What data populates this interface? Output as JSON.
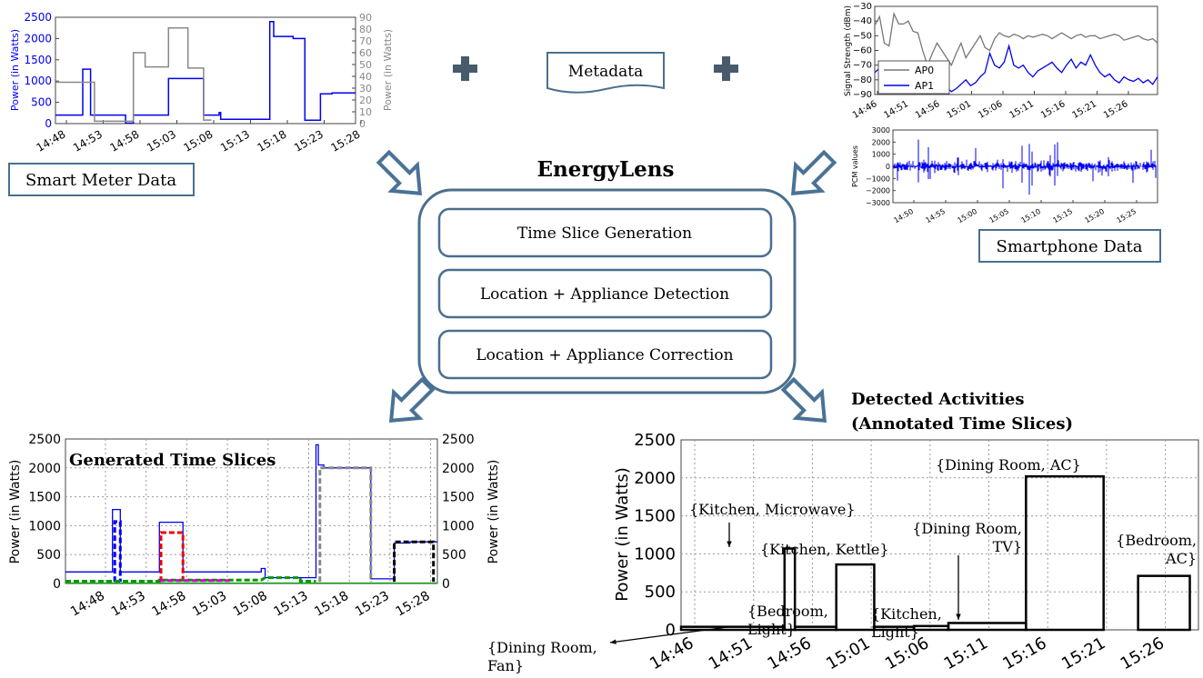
{
  "title": "EnergyLens",
  "modules": [
    "Time Slice Generation",
    "Location + Appliance Detection",
    "Location + Appliance Correction"
  ],
  "labels": {
    "smart_meter": "Smart Meter Data",
    "metadata": "Metadata",
    "smartphone": "Smartphone Data",
    "detected_line1": "Detected Activities",
    "detected_line2": "(Annotated Time Slices)"
  },
  "colors": {
    "arrow": "#4a7296",
    "box": "#4a6f8f",
    "plus": "#475b6c"
  },
  "chart_data": [
    {
      "type": "line",
      "title": "",
      "ylabel": "Power (in Watts)",
      "y2label": "Power (in Watts)",
      "ylim": [
        0,
        2500
      ],
      "y2lim": [
        0,
        90
      ],
      "yticks": [
        "0",
        "500",
        "1000",
        "1500",
        "2000",
        "2500"
      ],
      "y2ticks": [
        "0",
        "10",
        "20",
        "30",
        "40",
        "50",
        "60",
        "70",
        "80",
        "90"
      ],
      "xticks": [
        "14:48",
        "14:53",
        "14:58",
        "15:03",
        "15:08",
        "15:13",
        "15:18",
        "15:23",
        "15:28"
      ],
      "series": [
        {
          "color": "#0000ee",
          "axis": "left",
          "x": [
            14.0,
            17.5,
            17.5,
            18.5,
            18.5,
            23.0,
            23.0,
            24.0,
            24.0,
            28.5,
            28.5,
            33.0,
            33.0,
            35.0,
            35.0,
            35.2,
            35.2,
            41.5,
            41.5,
            42.0,
            42.0,
            44.5,
            44.5,
            46.0,
            46.0,
            48.0,
            48.0,
            49.5,
            49.5,
            52.5
          ],
          "y": [
            200,
            200,
            1280,
            1280,
            200,
            200,
            10,
            10,
            200,
            200,
            1060,
            1060,
            200,
            200,
            260,
            260,
            100,
            100,
            2400,
            2400,
            2050,
            2050,
            2000,
            2000,
            80,
            80,
            700,
            700,
            720,
            720
          ]
        },
        {
          "color": "#888888",
          "axis": "right",
          "x": [
            14.0,
            19.0,
            19.0,
            24.0,
            24.0,
            25.5,
            25.5,
            28.5,
            28.5,
            31.0,
            31.0,
            33.0,
            33.0,
            34.0
          ],
          "y": [
            35,
            35,
            2,
            2,
            60,
            60,
            48,
            48,
            81,
            81,
            47,
            47,
            3,
            3
          ]
        }
      ]
    },
    {
      "type": "line",
      "ylabel": "Signal Strength (dBm)",
      "ylim": [
        -90,
        -30
      ],
      "yticks": [
        "−90",
        "−80",
        "−70",
        "−60",
        "−50",
        "−40",
        "−30"
      ],
      "xticks": [
        "14:46",
        "14:51",
        "14:56",
        "15:01",
        "15:06",
        "15:11",
        "15:16",
        "15:21",
        "15:26"
      ],
      "legend": "top-left",
      "series": [
        {
          "name": "AP0",
          "color": "#777777",
          "y": [
            -43,
            -37,
            -55,
            -57,
            -35,
            -42,
            -42,
            -40,
            -47,
            -48,
            -60,
            -70,
            -62,
            -55,
            -60,
            -65,
            -70,
            -62,
            -55,
            -65,
            -60,
            -55,
            -50,
            -58,
            -60,
            -52,
            -48,
            -50,
            -51,
            -49,
            -50,
            -52,
            -50,
            -51,
            -50,
            -49,
            -50,
            -52,
            -50,
            -48,
            -50,
            -52,
            -50,
            -49,
            -51,
            -50,
            -50,
            -52,
            -51,
            -50,
            -49,
            -50,
            -53,
            -52,
            -51,
            -50,
            -52,
            -53,
            -52,
            -55
          ]
        },
        {
          "name": "AP1",
          "color": "#0000ee",
          "y": [
            -75,
            -72,
            -80,
            -85,
            -78,
            -88,
            -82,
            -86,
            -80,
            -84,
            -88,
            -85,
            -82,
            -87,
            -84,
            -85,
            -88,
            -86,
            -83,
            -80,
            -84,
            -82,
            -78,
            -75,
            -62,
            -70,
            -72,
            -68,
            -57,
            -70,
            -72,
            -70,
            -75,
            -78,
            -74,
            -72,
            -70,
            -68,
            -72,
            -75,
            -70,
            -66,
            -72,
            -68,
            -70,
            -63,
            -70,
            -75,
            -78,
            -76,
            -80,
            -82,
            -78,
            -80,
            -81,
            -79,
            -82,
            -80,
            -83,
            -78
          ]
        }
      ]
    },
    {
      "type": "line",
      "ylabel": "PCM values",
      "ylim": [
        -3000,
        3000
      ],
      "yticks": [
        "−3000",
        "−2000",
        "−1000",
        "0",
        "1000",
        "2000",
        "3000"
      ],
      "xticks": [
        "14:50",
        "14:55",
        "15:00",
        "15:05",
        "15:10",
        "15:15",
        "15:20",
        "15:25"
      ],
      "series": [
        {
          "color": "#0000ee"
        }
      ]
    },
    {
      "type": "line",
      "title": "Generated Time Slices",
      "ylabel": "Power (in Watts)",
      "y2label": "Power (in Watts)",
      "ylim": [
        0,
        2500
      ],
      "yticks": [
        "0",
        "500",
        "1000",
        "1500",
        "2000",
        "2500"
      ],
      "xticks": [
        "14:48",
        "14:53",
        "14:58",
        "15:03",
        "15:08",
        "15:13",
        "15:18",
        "15:23",
        "15:28"
      ],
      "series": [
        {
          "color": "#0000ee",
          "style": "solid",
          "x": [
            14.0,
            20.0,
            20.0,
            21.0,
            21.0,
            26.0,
            26.0,
            29.0,
            29.0,
            39.0,
            39.0,
            39.5,
            39.5,
            46.0,
            46.0,
            46.3,
            46.3,
            47.0,
            47.0,
            47.4,
            47.4,
            53.0,
            53.0,
            56.0,
            56.0,
            58.0,
            58.0,
            61.5
          ],
          "y": [
            200,
            200,
            1280,
            1280,
            200,
            200,
            1060,
            1060,
            200,
            200,
            260,
            260,
            100,
            100,
            2400,
            2400,
            2050,
            2050,
            2000,
            2000,
            2000,
            2000,
            80,
            80,
            700,
            700,
            720,
            720
          ]
        },
        {
          "color": "#0000ee",
          "style": "dashed",
          "x": [
            20.3,
            20.3,
            21.0,
            21.0
          ],
          "y": [
            30,
            1070,
            1070,
            30
          ]
        },
        {
          "color": "#ee0000",
          "style": "dashed",
          "x": [
            26.2,
            26.2,
            29.0,
            29.0
          ],
          "y": [
            30,
            880,
            880,
            30
          ]
        },
        {
          "color": "#888888",
          "style": "dashed",
          "x": [
            46.5,
            46.5,
            53.0,
            53.0
          ],
          "y": [
            30,
            2000,
            2000,
            30
          ]
        },
        {
          "color": "#000000",
          "style": "dashed",
          "x": [
            56.0,
            56.0,
            61.0,
            61.0
          ],
          "y": [
            30,
            720,
            720,
            30
          ]
        },
        {
          "color": "#009900",
          "style": "dashed",
          "x": [
            14.0,
            26.0,
            26.0,
            39.0,
            39.5,
            44.0,
            44.0,
            46.0
          ],
          "y": [
            40,
            40,
            60,
            60,
            100,
            100,
            40,
            40
          ]
        },
        {
          "color": "#cc00cc",
          "style": "dashed",
          "x": [
            26.0,
            35.0
          ],
          "y": [
            50,
            50
          ]
        },
        {
          "color": "#00aa00",
          "style": "solid",
          "x": [
            14.0,
            61.5
          ],
          "y": [
            8,
            8
          ]
        }
      ]
    },
    {
      "type": "bar",
      "title": "",
      "ylabel": "Power (in Watts)",
      "ylim": [
        0,
        2500
      ],
      "yticks": [
        "0",
        "500",
        "1000",
        "1500",
        "2000",
        "2500"
      ],
      "xticks": [
        "14:46",
        "14:51",
        "14:56",
        "15:01",
        "15:06",
        "15:11",
        "15:16",
        "15:21",
        "15:26"
      ],
      "bars": [
        {
          "x0": 0.0,
          "x1": 6.0,
          "value": 40
        },
        {
          "x0": 6.0,
          "x1": 6.6,
          "value": 1070
        },
        {
          "x0": 6.6,
          "x1": 9.0,
          "value": 40
        },
        {
          "x0": 9.0,
          "x1": 11.2,
          "value": 860
        },
        {
          "x0": 11.2,
          "x1": 13.5,
          "value": 40
        },
        {
          "x0": 13.5,
          "x1": 15.5,
          "value": 50
        },
        {
          "x0": 15.5,
          "x1": 20.0,
          "value": 90
        },
        {
          "x0": 20.0,
          "x1": 24.5,
          "value": 2020
        },
        {
          "x0": 26.5,
          "x1": 29.5,
          "value": 710
        }
      ],
      "annotations": [
        {
          "lines": [
            "{Kitchen, Microwave}"
          ]
        },
        {
          "lines": [
            "{Kitchen, Kettle}"
          ]
        },
        {
          "lines": [
            "{Bedroom,",
            "Light}"
          ]
        },
        {
          "lines": [
            "{Kitchen,",
            "Light}"
          ]
        },
        {
          "lines": [
            "{Dining Room,",
            "TV}"
          ]
        },
        {
          "lines": [
            "{Dining Room, AC}"
          ]
        },
        {
          "lines": [
            "{Bedroom,",
            "AC}"
          ]
        },
        {
          "lines": [
            "{Dining Room,",
            "Fan}"
          ]
        }
      ]
    }
  ]
}
